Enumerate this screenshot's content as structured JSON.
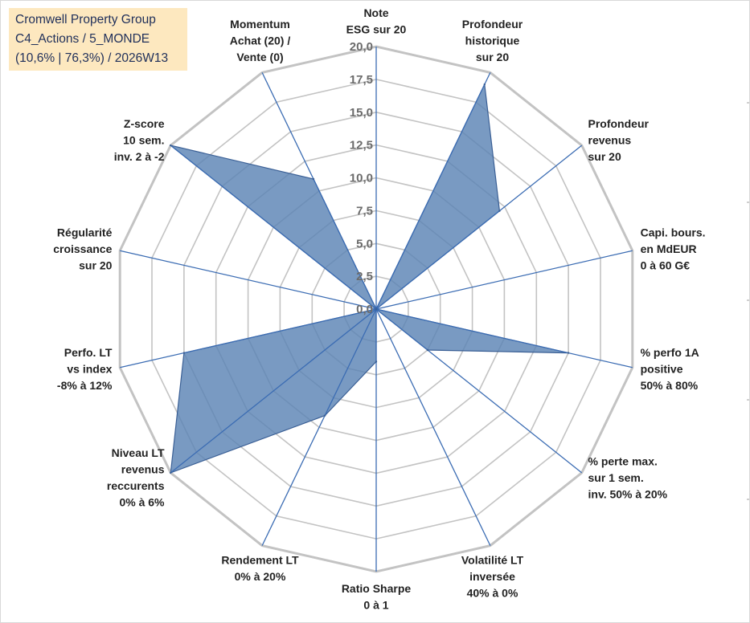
{
  "header": {
    "company": "Cromwell Property Group",
    "category": "C4_Actions / 5_MONDE",
    "stats": "(10,6% | 76,3%) / 2026W13"
  },
  "colors": {
    "fill": "#5b84b5",
    "stroke": "#3a5f95",
    "grid": "#c3c3c3",
    "spoke": "#3b6cb3",
    "title_bg": "#fde8bf",
    "title_text": "#1f2f5a"
  },
  "chart_data": {
    "type": "radar",
    "title": "",
    "r_min": 0,
    "r_max": 20,
    "r_ticks": [
      "0,0",
      "2,5",
      "5,0",
      "7,5",
      "10,0",
      "12,5",
      "15,0",
      "17,5",
      "20,0"
    ],
    "r_tick_values": [
      0,
      2.5,
      5,
      7.5,
      10,
      12.5,
      15,
      17.5,
      20
    ],
    "axes": [
      {
        "label": [
          "Note",
          "ESG sur 20"
        ],
        "value": 0
      },
      {
        "label": [
          "Profondeur",
          "historique",
          "sur 20"
        ],
        "value": 19
      },
      {
        "label": [
          "Profondeur",
          "revenus",
          "sur 20"
        ],
        "value": 12
      },
      {
        "label": [
          "Capi. bours.",
          "en MdEUR",
          "0 à 60 G€"
        ],
        "value": 0
      },
      {
        "label": [
          "% perfo 1A",
          "positive",
          "50% à 80%"
        ],
        "value": 15
      },
      {
        "label": [
          "% perte max.",
          "sur 1 sem.",
          "inv. 50% à 20%"
        ],
        "value": 5
      },
      {
        "label": [
          "Volatilité LT",
          "inversée",
          "40% à 0%"
        ],
        "value": 0
      },
      {
        "label": [
          "Ratio Sharpe",
          "0 à 1"
        ],
        "value": 4
      },
      {
        "label": [
          "Rendement LT",
          "0% à 20%"
        ],
        "value": 9
      },
      {
        "label": [
          "Niveau LT",
          "revenus",
          "reccurents",
          "0% à 6%"
        ],
        "value": 20
      },
      {
        "label": [
          "Perfo. LT",
          "vs index",
          "-8% à 12%"
        ],
        "value": 15
      },
      {
        "label": [
          "Régularité",
          "croissance",
          "sur 20"
        ],
        "value": 0
      },
      {
        "label": [
          "Z-score",
          "10 sem.",
          "inv. 2 à -2"
        ],
        "value": 20
      },
      {
        "label": [
          "Momentum",
          "Achat (20) /",
          "Vente (0)"
        ],
        "value": 11
      }
    ]
  }
}
